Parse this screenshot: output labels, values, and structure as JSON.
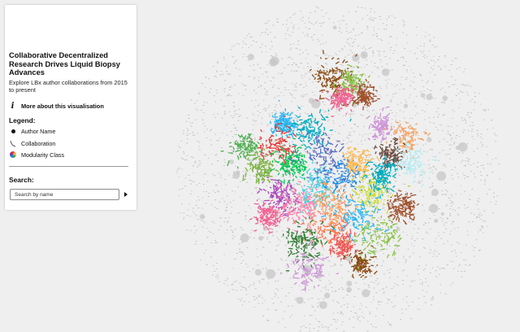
{
  "panel": {
    "title": "Collaborative Decentralized Research Drives Liquid Biopsy Advances",
    "subtitle": "Explore LBx author collaborations from 2015 to present",
    "about_label": "More about this visualisation",
    "about_icon": "info-icon",
    "legend_heading": "Legend:",
    "legend": [
      {
        "icon": "node-dot-icon",
        "label": "Author Name"
      },
      {
        "icon": "edge-line-icon",
        "label": "Collaboration"
      },
      {
        "icon": "color-wheel-icon",
        "label": "Modularity Class"
      }
    ],
    "search_heading": "Search:",
    "search_placeholder": "Search by name",
    "search_value": "",
    "search_button_icon": "play-triangle-icon"
  },
  "graph": {
    "background": "#efefef",
    "periphery_color": "#b8b8b8",
    "cluster_colors": [
      "#8b4a12",
      "#8bc34a",
      "#a0522d",
      "#f06292",
      "#ce93d8",
      "#f4a261",
      "#29b6f6",
      "#00acc1",
      "#e53935",
      "#4caf50",
      "#7cb342",
      "#ab47bc",
      "#ff80ab",
      "#4dd0e1",
      "#1e88e5",
      "#ffb74d",
      "#cddc39",
      "#6d4c41",
      "#b2ebf2",
      "#00c853",
      "#5c6bc0",
      "#ff7043",
      "#2e7d32",
      "#ef5350"
    ]
  }
}
